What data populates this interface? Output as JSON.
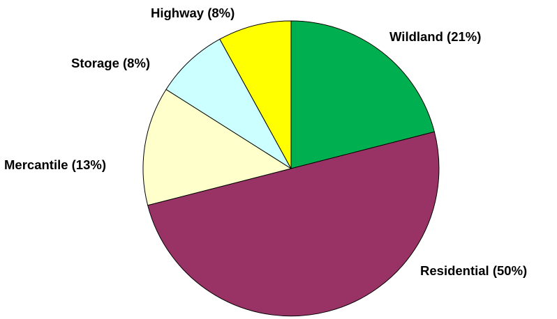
{
  "chart_data": {
    "type": "pie",
    "title": "",
    "start_angle_deg": 0,
    "direction": "clockwise",
    "slices": [
      {
        "label": "Wildland (21%)",
        "name": "Wildland",
        "value": 21,
        "color": "#00B050"
      },
      {
        "label": "Residential (50%)",
        "name": "Residential",
        "value": 50,
        "color": "#993366"
      },
      {
        "label": "Mercantile (13%)",
        "name": "Mercantile",
        "value": 13,
        "color": "#FFFFCC"
      },
      {
        "label": "Storage (8%)",
        "name": "Storage",
        "value": 8,
        "color": "#CCFFFF"
      },
      {
        "label": "Highway (8%)",
        "name": "Highway",
        "value": 8,
        "color": "#FFFF00"
      }
    ],
    "legend": "none"
  }
}
